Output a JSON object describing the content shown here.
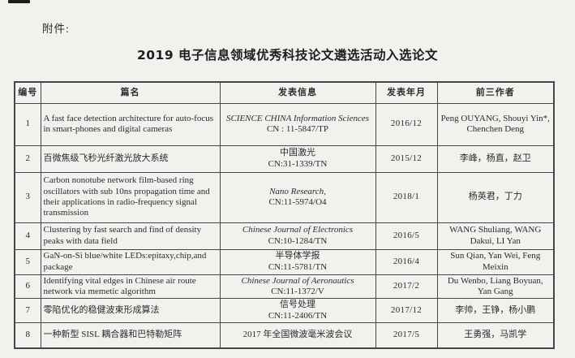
{
  "page": {
    "attachment_label": "附件:",
    "title": "2019 电子信息领域优秀科技论文遴选活动入选论文",
    "colors": {
      "paper": "#f1f1ee",
      "ink": "#2b2b2e",
      "border": "#45464a"
    }
  },
  "table": {
    "headers": [
      "编号",
      "篇名",
      "发表信息",
      "发表年月",
      "前三作者"
    ],
    "rows": [
      {
        "no": "1",
        "title": "A fast face detection architecture for auto-focus in smart-phones and digital cameras",
        "venue": [
          {
            "text": "SCIENCE CHINA Information Sciences",
            "italic": true
          },
          {
            "text": "CN : 11-5847/TP",
            "italic": false
          }
        ],
        "date": "2016/12",
        "authors": "Peng OUYANG, Shouyi Yin*, Chenchen Deng"
      },
      {
        "no": "2",
        "title": "百微焦级飞秒光纤激光放大系统",
        "venue": [
          {
            "text": "中国激光",
            "italic": false
          },
          {
            "text": "CN:31-1339/TN",
            "italic": false
          }
        ],
        "date": "2015/12",
        "authors": "李峰，杨直，赵卫"
      },
      {
        "no": "3",
        "title": "Carbon nonotube network film-based ring oscillators with sub 10ns propagation time and their applications in radio-frequency signal transmission",
        "venue": [
          {
            "text": "Nano Research,",
            "italic": true
          },
          {
            "text": "CN:11-5974/O4",
            "italic": false
          }
        ],
        "date": "2018/1",
        "authors": "杨英君，丁力"
      },
      {
        "no": "4",
        "title": "Clustering by fast search and find of density peaks with data field",
        "venue": [
          {
            "text": "Chinese Journal of Electronics",
            "italic": true
          },
          {
            "text": "CN:10-1284/TN",
            "italic": false
          }
        ],
        "date": "2016/5",
        "authors": "WANG Shuliang, WANG Dakui, LI Yan"
      },
      {
        "no": "5",
        "title": "GaN-on-Si blue/white LEDs:epitaxy,chip,and package",
        "venue": [
          {
            "text": "半导体学报",
            "italic": false
          },
          {
            "text": "CN:11-5781/TN",
            "italic": false
          }
        ],
        "date": "2016/4",
        "authors": "Sun Qian, Yan Wei, Feng Meixin"
      },
      {
        "no": "6",
        "title": "Identifying vital edges in Chinese air route network via memetic algorithm",
        "venue": [
          {
            "text": "Chinese Journal of Aeronautics",
            "italic": true
          },
          {
            "text": "CN:11-1372/V",
            "italic": false
          }
        ],
        "date": "2017/2",
        "authors": "Du Wenbo, Liang Boyuan, Yan Gang"
      },
      {
        "no": "7",
        "title": "零陷优化的稳健波束形成算法",
        "venue": [
          {
            "text": "信号处理",
            "italic": false
          },
          {
            "text": "CN:11-2406/TN",
            "italic": false
          }
        ],
        "date": "2017/12",
        "authors": "李帅，王铮，杨小鹏"
      },
      {
        "no": "8",
        "title": "一种新型 SISL 耦合器和巴特勒矩阵",
        "venue": [
          {
            "text": "2017 年全国微波毫米波会议",
            "italic": false
          }
        ],
        "date": "2017/5",
        "authors": "王勇强，马凯学"
      }
    ]
  }
}
